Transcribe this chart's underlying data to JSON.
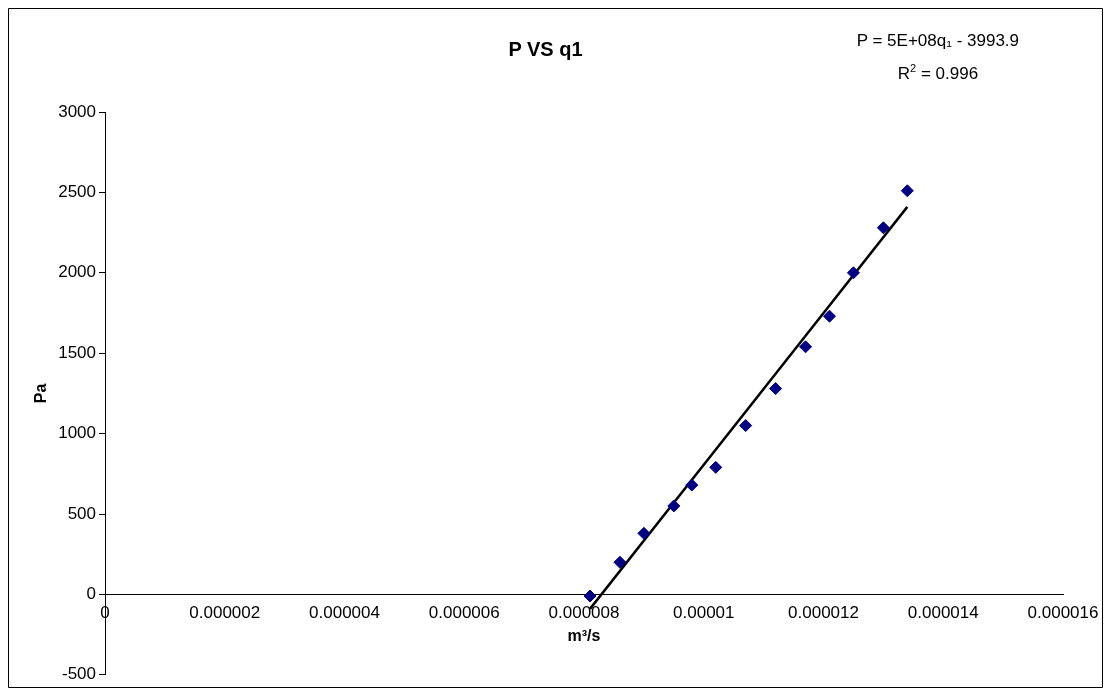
{
  "chart_data": {
    "type": "scatter",
    "title": "P VS q1",
    "xlabel": "m³/s",
    "ylabel": "Pa",
    "annotations": [
      "P = 5E+08q₁ - 3993.9",
      "R$^{2}$ = 0.996"
    ],
    "series": [
      {
        "color": "#000080",
        "marker": "diamond",
        "x": [
          8.1e-06,
          8.6e-06,
          9e-06,
          9.5e-06,
          9.8e-06,
          1.02e-05,
          1.07e-05,
          1.12e-05,
          1.17e-05,
          1.21e-05,
          1.25e-05,
          1.3e-05,
          1.34e-05
        ],
        "values": [
          -10,
          200,
          380,
          550,
          680,
          790,
          1050,
          1280,
          1540,
          1730,
          2000,
          2280,
          2510
        ]
      },
      {
        "type": "line",
        "color": "#000000",
        "marker": "none",
        "x": [
          8.1e-06,
          1.34e-05
        ],
        "values": [
          -90,
          2410
        ]
      }
    ],
    "xlim": [
      0,
      1.6e-05
    ],
    "xticks": [
      0,
      {
        "value": 2e-06,
        "label": "0.000002"
      },
      {
        "value": 4e-06,
        "label": "0.000004"
      },
      {
        "value": 6e-06,
        "label": "0.000006"
      },
      {
        "value": 8e-06,
        "label": "0.000008"
      },
      {
        "value": 1e-05,
        "label": "0.00001"
      },
      {
        "value": 1.2e-05,
        "label": "0.000012"
      },
      {
        "value": 1.4e-05,
        "label": "0.000014"
      },
      {
        "value": 1.6e-05,
        "label": "0.000016"
      }
    ],
    "ylim": [
      -500,
      3000
    ],
    "yticks": [
      -500,
      0,
      500,
      1000,
      1500,
      2000,
      2500,
      3000
    ],
    "grid": false,
    "legend": false
  }
}
